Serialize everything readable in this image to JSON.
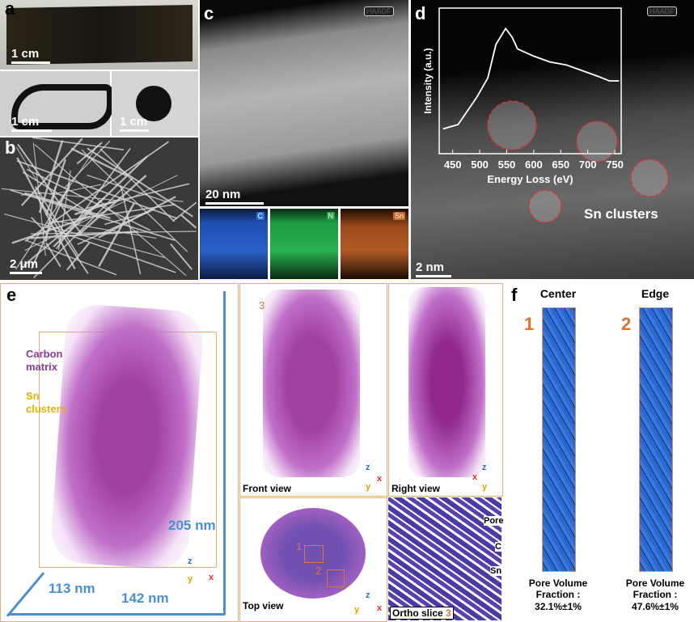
{
  "panels": {
    "a": {
      "label": "a",
      "scale_bars": [
        "1 cm",
        "1 cm",
        "1 cm"
      ]
    },
    "b": {
      "label": "b",
      "scale_bar": "2 μm"
    },
    "c": {
      "label": "c",
      "badge": "HAADF",
      "scale_bar": "20 nm",
      "maps": [
        "C",
        "N",
        "Sn"
      ]
    },
    "d": {
      "label": "d",
      "badge": "HAADF",
      "scale_bar": "2 nm",
      "annotation": "Sn clusters",
      "inset": {
        "type": "line",
        "xlabel": "Energy Loss (eV)",
        "ylabel": "Intensity (a.u.)",
        "xlim": [
          425,
          762
        ],
        "ylim": [
          0,
          1
        ],
        "xticks": [
          450,
          500,
          550,
          600,
          650,
          700,
          750
        ],
        "color": "#ffffff",
        "x": [
          432,
          460,
          495,
          515,
          530,
          548,
          560,
          570,
          600,
          630,
          660,
          690,
          720,
          740,
          758
        ],
        "values": [
          0.17,
          0.2,
          0.39,
          0.52,
          0.75,
          0.86,
          0.8,
          0.72,
          0.67,
          0.63,
          0.61,
          0.57,
          0.53,
          0.5,
          0.5
        ]
      }
    },
    "e": {
      "label": "e",
      "annotations": [
        "Carbon matrix",
        "Sn clusters"
      ],
      "dimensions": [
        "205 nm",
        "113 nm",
        "142 nm"
      ],
      "views": [
        "Front view",
        "Right view",
        "Top view",
        "Ortho slice"
      ],
      "markers": [
        "3",
        "1",
        "2",
        "3"
      ],
      "ortho_labels": [
        "Pore",
        "C",
        "Sn"
      ],
      "axis_letters": [
        "z",
        "y",
        "x"
      ]
    },
    "f": {
      "label": "f",
      "columns": [
        {
          "number": "1",
          "title": "Center",
          "caption": "Pore Volume Fraction :",
          "value": "32.1%±1%"
        },
        {
          "number": "2",
          "title": "Edge",
          "caption": "Pore Volume Fraction :",
          "value": "47.6%±1%"
        }
      ]
    }
  }
}
